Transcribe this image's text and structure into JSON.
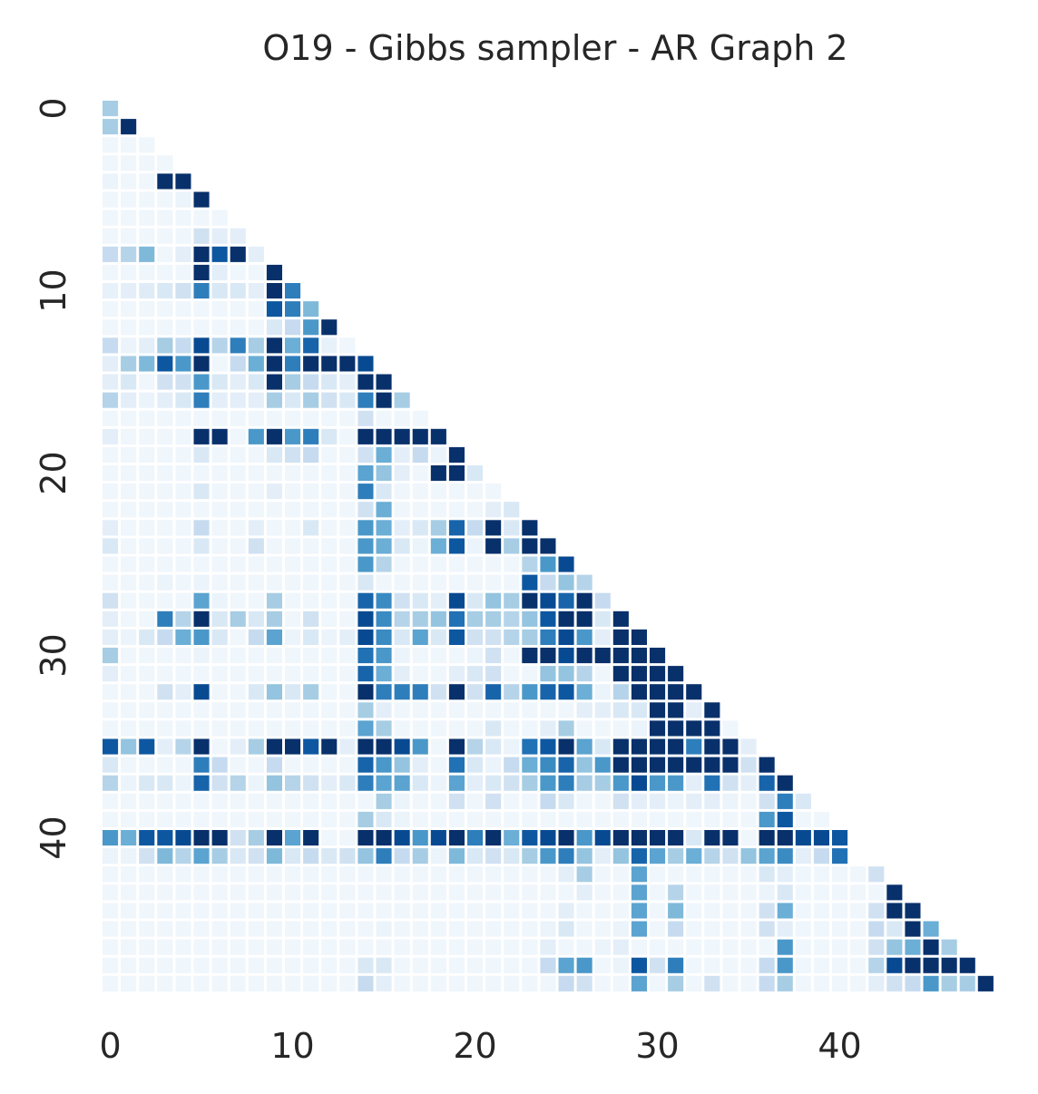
{
  "chart_data": {
    "type": "heatmap",
    "title": "O19 - Gibbs sampler - AR Graph 2",
    "xlabel": "",
    "ylabel": "",
    "size": 49,
    "x_ticks": [
      0,
      10,
      20,
      30,
      40
    ],
    "y_ticks": [
      0,
      10,
      20,
      30,
      40
    ],
    "mask": "lower-triangle including diagonal; upper triangle blank",
    "colormap": "Blues",
    "value_range": [
      0,
      1
    ],
    "colorbar": false,
    "grid": false,
    "legend": "none",
    "values": [
      [
        0.35
      ],
      [
        0.35,
        1.0
      ],
      [
        0.04,
        0.04,
        0.04
      ],
      [
        0.04,
        0.04,
        0.04,
        0.04
      ],
      [
        0.06,
        0.04,
        0.04,
        1.0,
        1.0
      ],
      [
        0.04,
        0.04,
        0.04,
        0.04,
        0.06,
        1.0
      ],
      [
        0.04,
        0.04,
        0.04,
        0.04,
        0.04,
        0.04,
        0.04
      ],
      [
        0.04,
        0.04,
        0.04,
        0.04,
        0.04,
        0.2,
        0.1,
        0.1
      ],
      [
        0.25,
        0.3,
        0.45,
        0.04,
        0.1,
        1.0,
        0.85,
        1.0,
        0.1
      ],
      [
        0.04,
        0.04,
        0.04,
        0.04,
        0.04,
        1.0,
        0.1,
        0.04,
        0.04,
        1.0
      ],
      [
        0.08,
        0.1,
        0.12,
        0.15,
        0.2,
        0.7,
        0.15,
        0.15,
        0.1,
        1.0,
        0.7
      ],
      [
        0.04,
        0.04,
        0.04,
        0.04,
        0.04,
        0.04,
        0.04,
        0.04,
        0.04,
        0.85,
        0.7,
        0.45
      ],
      [
        0.04,
        0.04,
        0.04,
        0.04,
        0.04,
        0.04,
        0.04,
        0.04,
        0.04,
        0.15,
        0.25,
        0.6,
        1.0
      ],
      [
        0.25,
        0.06,
        0.1,
        0.35,
        0.25,
        0.9,
        0.3,
        0.7,
        0.35,
        1.0,
        0.5,
        0.8,
        0.08,
        0.04
      ],
      [
        0.1,
        0.35,
        0.45,
        0.85,
        0.6,
        1.0,
        0.04,
        0.25,
        0.5,
        1.0,
        0.7,
        1.0,
        1.0,
        1.0,
        0.9
      ],
      [
        0.1,
        0.15,
        0.04,
        0.2,
        0.2,
        0.6,
        0.15,
        0.1,
        0.15,
        1.0,
        0.35,
        0.25,
        0.15,
        0.1,
        1.0,
        1.0
      ],
      [
        0.3,
        0.1,
        0.06,
        0.1,
        0.15,
        0.7,
        0.1,
        0.1,
        0.1,
        0.35,
        0.15,
        0.35,
        0.2,
        0.15,
        0.7,
        1.0,
        0.35
      ],
      [
        0.04,
        0.04,
        0.04,
        0.04,
        0.04,
        0.04,
        0.04,
        0.04,
        0.04,
        0.04,
        0.04,
        0.04,
        0.04,
        0.04,
        0.2,
        0.04,
        0.04,
        0.04
      ],
      [
        0.1,
        0.04,
        0.04,
        0.04,
        0.04,
        1.0,
        1.0,
        0.04,
        0.6,
        1.0,
        0.6,
        0.7,
        0.15,
        0.04,
        1.0,
        1.0,
        1.0,
        1.0,
        1.0
      ],
      [
        0.04,
        0.04,
        0.04,
        0.04,
        0.04,
        0.15,
        0.04,
        0.04,
        0.04,
        0.15,
        0.2,
        0.25,
        0.04,
        0.04,
        0.2,
        0.5,
        0.1,
        0.25,
        0.06,
        1.0
      ],
      [
        0.04,
        0.04,
        0.04,
        0.04,
        0.04,
        0.04,
        0.04,
        0.04,
        0.04,
        0.04,
        0.04,
        0.04,
        0.04,
        0.04,
        0.55,
        0.4,
        0.1,
        0.04,
        1.0,
        1.0,
        0.15
      ],
      [
        0.04,
        0.04,
        0.04,
        0.04,
        0.04,
        0.15,
        0.04,
        0.04,
        0.04,
        0.1,
        0.04,
        0.04,
        0.04,
        0.04,
        0.7,
        0.15,
        0.04,
        0.04,
        0.04,
        0.04,
        0.04,
        0.04
      ],
      [
        0.04,
        0.04,
        0.04,
        0.04,
        0.04,
        0.04,
        0.04,
        0.04,
        0.04,
        0.04,
        0.04,
        0.04,
        0.04,
        0.04,
        0.2,
        0.5,
        0.04,
        0.04,
        0.04,
        0.04,
        0.04,
        0.1,
        0.15
      ],
      [
        0.1,
        0.04,
        0.04,
        0.04,
        0.04,
        0.25,
        0.04,
        0.04,
        0.1,
        0.04,
        0.04,
        0.15,
        0.04,
        0.04,
        0.6,
        0.5,
        0.1,
        0.15,
        0.35,
        0.8,
        0.25,
        1.0,
        0.15,
        1.0
      ],
      [
        0.15,
        0.04,
        0.04,
        0.04,
        0.04,
        0.15,
        0.04,
        0.04,
        0.2,
        0.04,
        0.04,
        0.04,
        0.04,
        0.04,
        0.6,
        0.5,
        0.15,
        0.06,
        0.5,
        0.85,
        0.06,
        1.0,
        0.35,
        1.0,
        1.0
      ],
      [
        0.04,
        0.04,
        0.04,
        0.04,
        0.04,
        0.04,
        0.04,
        0.04,
        0.04,
        0.04,
        0.04,
        0.04,
        0.04,
        0.04,
        0.6,
        0.3,
        0.04,
        0.04,
        0.04,
        0.04,
        0.04,
        0.04,
        0.04,
        0.3,
        0.6,
        0.9
      ],
      [
        0.04,
        0.04,
        0.04,
        0.06,
        0.04,
        0.06,
        0.04,
        0.04,
        0.04,
        0.04,
        0.04,
        0.04,
        0.04,
        0.04,
        0.15,
        0.04,
        0.04,
        0.04,
        0.04,
        0.04,
        0.04,
        0.04,
        0.04,
        0.85,
        0.25,
        0.4,
        0.3
      ],
      [
        0.2,
        0.04,
        0.04,
        0.04,
        0.04,
        0.55,
        0.06,
        0.04,
        0.04,
        0.35,
        0.04,
        0.04,
        0.04,
        0.04,
        0.8,
        0.65,
        0.2,
        0.15,
        0.1,
        0.9,
        0.15,
        0.4,
        0.35,
        1.0,
        0.9,
        0.8,
        1.0,
        0.25
      ],
      [
        0.1,
        0.04,
        0.04,
        0.7,
        0.3,
        1.0,
        0.15,
        0.35,
        0.15,
        0.35,
        0.04,
        0.2,
        0.04,
        0.04,
        0.9,
        0.65,
        0.3,
        0.35,
        0.4,
        0.75,
        0.35,
        0.35,
        0.3,
        0.4,
        0.85,
        1.0,
        1.0,
        0.15,
        1.0
      ],
      [
        0.1,
        0.06,
        0.15,
        0.25,
        0.5,
        0.6,
        0.15,
        0.04,
        0.25,
        0.55,
        0.06,
        0.15,
        0.06,
        0.1,
        0.9,
        0.65,
        0.15,
        0.55,
        0.15,
        0.85,
        0.2,
        0.2,
        0.3,
        0.35,
        0.7,
        0.9,
        0.6,
        0.1,
        1.0,
        1.0
      ],
      [
        0.35,
        0.04,
        0.04,
        0.04,
        0.04,
        0.06,
        0.04,
        0.04,
        0.04,
        0.04,
        0.04,
        0.04,
        0.04,
        0.04,
        0.75,
        0.6,
        0.06,
        0.04,
        0.04,
        0.04,
        0.06,
        0.2,
        0.04,
        1.0,
        1.0,
        0.9,
        1.0,
        1.0,
        1.0,
        1.0,
        1.0
      ],
      [
        0.1,
        0.04,
        0.04,
        0.04,
        0.04,
        0.04,
        0.04,
        0.04,
        0.04,
        0.04,
        0.04,
        0.04,
        0.04,
        0.04,
        0.8,
        0.5,
        0.1,
        0.04,
        0.04,
        0.1,
        0.15,
        0.2,
        0.04,
        0.04,
        0.4,
        0.4,
        0.3,
        0.04,
        1.0,
        1.0,
        1.0,
        1.0
      ],
      [
        0.04,
        0.04,
        0.04,
        0.2,
        0.1,
        0.9,
        0.04,
        0.04,
        0.15,
        0.4,
        0.15,
        0.35,
        0.04,
        0.04,
        1.0,
        0.7,
        0.7,
        0.7,
        0.2,
        1.0,
        0.2,
        0.8,
        0.3,
        0.6,
        0.8,
        0.85,
        0.5,
        0.06,
        0.3,
        1.0,
        1.0,
        1.0,
        1.0
      ],
      [
        0.04,
        0.04,
        0.04,
        0.04,
        0.04,
        0.04,
        0.04,
        0.04,
        0.04,
        0.04,
        0.04,
        0.04,
        0.04,
        0.04,
        0.35,
        0.1,
        0.04,
        0.04,
        0.04,
        0.04,
        0.04,
        0.04,
        0.04,
        0.04,
        0.04,
        0.04,
        0.1,
        0.1,
        0.15,
        0.15,
        1.0,
        1.0,
        0.1,
        1.0
      ],
      [
        0.04,
        0.04,
        0.04,
        0.04,
        0.04,
        0.04,
        0.04,
        0.04,
        0.04,
        0.04,
        0.04,
        0.04,
        0.04,
        0.04,
        0.55,
        0.35,
        0.04,
        0.04,
        0.04,
        0.04,
        0.04,
        0.15,
        0.04,
        0.04,
        0.1,
        0.35,
        0.04,
        0.04,
        0.04,
        0.06,
        1.0,
        1.0,
        1.0,
        1.0,
        0.04
      ],
      [
        0.85,
        0.4,
        0.85,
        0.1,
        0.3,
        1.0,
        0.04,
        0.1,
        0.35,
        1.0,
        1.0,
        0.85,
        1.0,
        0.1,
        1.0,
        1.0,
        0.9,
        0.6,
        0.04,
        1.0,
        0.3,
        0.15,
        0.06,
        0.75,
        0.85,
        1.0,
        0.55,
        0.15,
        1.0,
        1.0,
        1.0,
        1.0,
        0.7,
        1.0,
        1.0,
        0.1
      ],
      [
        0.15,
        0.04,
        0.04,
        0.04,
        0.04,
        0.7,
        0.25,
        0.04,
        0.04,
        0.25,
        0.04,
        0.04,
        0.04,
        0.04,
        0.8,
        0.6,
        0.4,
        0.1,
        0.04,
        0.75,
        0.15,
        0.06,
        0.25,
        0.5,
        0.65,
        0.8,
        0.4,
        0.6,
        1.0,
        1.0,
        1.0,
        1.0,
        1.0,
        1.0,
        1.0,
        0.2,
        1.0
      ],
      [
        0.3,
        0.06,
        0.15,
        0.15,
        0.06,
        0.8,
        0.2,
        0.3,
        0.06,
        0.4,
        0.3,
        0.2,
        0.1,
        0.15,
        0.7,
        0.55,
        0.55,
        0.15,
        0.06,
        0.55,
        0.1,
        0.15,
        0.2,
        0.35,
        0.6,
        0.7,
        0.35,
        0.35,
        0.6,
        0.9,
        0.6,
        0.6,
        0.1,
        0.75,
        0.2,
        0.1,
        0.8,
        1.0
      ],
      [
        0.04,
        0.04,
        0.04,
        0.04,
        0.04,
        0.04,
        0.04,
        0.04,
        0.04,
        0.04,
        0.04,
        0.04,
        0.04,
        0.04,
        0.04,
        0.35,
        0.06,
        0.04,
        0.04,
        0.2,
        0.04,
        0.2,
        0.04,
        0.04,
        0.25,
        0.15,
        0.04,
        0.04,
        0.2,
        0.1,
        0.1,
        0.06,
        0.1,
        0.1,
        0.06,
        0.04,
        0.2,
        0.7,
        0.15
      ],
      [
        0.04,
        0.04,
        0.04,
        0.04,
        0.04,
        0.04,
        0.04,
        0.04,
        0.04,
        0.04,
        0.04,
        0.04,
        0.04,
        0.04,
        0.35,
        0.15,
        0.06,
        0.04,
        0.04,
        0.04,
        0.04,
        0.04,
        0.04,
        0.04,
        0.04,
        0.04,
        0.04,
        0.04,
        0.04,
        0.04,
        0.04,
        0.04,
        0.04,
        0.04,
        0.04,
        0.04,
        0.6,
        0.85,
        0.04,
        0.04
      ],
      [
        0.6,
        0.5,
        0.85,
        0.85,
        0.9,
        1.0,
        1.0,
        0.2,
        0.35,
        1.0,
        0.55,
        1.0,
        0.04,
        0.04,
        1.0,
        1.0,
        0.9,
        0.6,
        0.9,
        1.0,
        0.7,
        1.0,
        0.5,
        0.85,
        0.9,
        1.0,
        0.6,
        0.9,
        1.0,
        1.0,
        1.0,
        1.0,
        0.15,
        1.0,
        1.0,
        0.04,
        1.0,
        1.0,
        0.9,
        0.9,
        0.85
      ],
      [
        0.06,
        0.06,
        0.2,
        0.45,
        0.3,
        0.55,
        0.35,
        0.15,
        0.2,
        0.45,
        0.15,
        0.25,
        0.15,
        0.2,
        0.4,
        0.7,
        0.25,
        0.35,
        0.06,
        0.45,
        0.15,
        0.2,
        0.15,
        0.35,
        0.6,
        0.7,
        0.4,
        0.1,
        0.4,
        0.8,
        0.55,
        0.35,
        0.5,
        0.3,
        0.2,
        0.4,
        0.55,
        0.65,
        0.1,
        0.25,
        0.75
      ],
      [
        0.04,
        0.04,
        0.04,
        0.04,
        0.04,
        0.04,
        0.04,
        0.04,
        0.04,
        0.04,
        0.04,
        0.04,
        0.04,
        0.04,
        0.04,
        0.04,
        0.04,
        0.04,
        0.04,
        0.04,
        0.04,
        0.04,
        0.04,
        0.04,
        0.04,
        0.1,
        0.35,
        0.04,
        0.04,
        0.55,
        0.04,
        0.04,
        0.04,
        0.04,
        0.04,
        0.04,
        0.15,
        0.1,
        0.04,
        0.04,
        0.04,
        0.04,
        0.2
      ],
      [
        0.04,
        0.04,
        0.04,
        0.04,
        0.04,
        0.04,
        0.04,
        0.04,
        0.04,
        0.04,
        0.04,
        0.04,
        0.04,
        0.04,
        0.04,
        0.04,
        0.04,
        0.04,
        0.04,
        0.04,
        0.04,
        0.04,
        0.04,
        0.04,
        0.04,
        0.04,
        0.1,
        0.04,
        0.04,
        0.55,
        0.04,
        0.3,
        0.04,
        0.04,
        0.04,
        0.04,
        0.06,
        0.15,
        0.04,
        0.04,
        0.04,
        0.04,
        0.04,
        1.0
      ],
      [
        0.04,
        0.04,
        0.04,
        0.04,
        0.04,
        0.04,
        0.04,
        0.04,
        0.04,
        0.04,
        0.04,
        0.04,
        0.04,
        0.04,
        0.04,
        0.04,
        0.04,
        0.04,
        0.04,
        0.04,
        0.04,
        0.04,
        0.04,
        0.04,
        0.04,
        0.1,
        0.04,
        0.04,
        0.04,
        0.55,
        0.04,
        0.45,
        0.04,
        0.04,
        0.04,
        0.04,
        0.2,
        0.5,
        0.04,
        0.04,
        0.04,
        0.04,
        0.2,
        1.0,
        1.0
      ],
      [
        0.04,
        0.04,
        0.04,
        0.04,
        0.04,
        0.04,
        0.04,
        0.04,
        0.04,
        0.04,
        0.04,
        0.04,
        0.04,
        0.04,
        0.04,
        0.06,
        0.04,
        0.04,
        0.04,
        0.04,
        0.04,
        0.04,
        0.04,
        0.04,
        0.06,
        0.15,
        0.04,
        0.04,
        0.06,
        0.55,
        0.04,
        0.25,
        0.04,
        0.04,
        0.04,
        0.04,
        0.2,
        0.1,
        0.04,
        0.04,
        0.04,
        0.04,
        0.25,
        0.15,
        1.0,
        0.5
      ],
      [
        0.04,
        0.04,
        0.04,
        0.04,
        0.04,
        0.04,
        0.04,
        0.04,
        0.04,
        0.04,
        0.04,
        0.04,
        0.04,
        0.04,
        0.04,
        0.04,
        0.04,
        0.04,
        0.04,
        0.04,
        0.04,
        0.04,
        0.04,
        0.04,
        0.1,
        0.04,
        0.04,
        0.06,
        0.1,
        0.04,
        0.04,
        0.04,
        0.04,
        0.04,
        0.04,
        0.04,
        0.04,
        0.6,
        0.04,
        0.04,
        0.04,
        0.04,
        0.2,
        0.4,
        0.5,
        1.0,
        0.35
      ],
      [
        0.04,
        0.04,
        0.04,
        0.04,
        0.04,
        0.04,
        0.04,
        0.04,
        0.04,
        0.04,
        0.04,
        0.04,
        0.04,
        0.04,
        0.15,
        0.15,
        0.04,
        0.04,
        0.04,
        0.04,
        0.04,
        0.04,
        0.04,
        0.04,
        0.25,
        0.55,
        0.6,
        0.04,
        0.06,
        0.85,
        0.2,
        0.7,
        0.04,
        0.04,
        0.04,
        0.04,
        0.25,
        0.6,
        0.04,
        0.04,
        0.04,
        0.04,
        0.3,
        0.9,
        1.0,
        1.0,
        1.0,
        1.0
      ],
      [
        0.04,
        0.04,
        0.04,
        0.04,
        0.04,
        0.04,
        0.04,
        0.04,
        0.04,
        0.04,
        0.04,
        0.04,
        0.04,
        0.04,
        0.25,
        0.1,
        0.04,
        0.04,
        0.04,
        0.04,
        0.04,
        0.04,
        0.04,
        0.04,
        0.04,
        0.25,
        0.2,
        0.04,
        0.04,
        0.55,
        0.04,
        0.35,
        0.04,
        0.2,
        0.04,
        0.04,
        0.25,
        0.35,
        0.04,
        0.04,
        0.04,
        0.04,
        0.1,
        0.2,
        0.25,
        0.6,
        0.35,
        0.35,
        1.0
      ]
    ]
  }
}
